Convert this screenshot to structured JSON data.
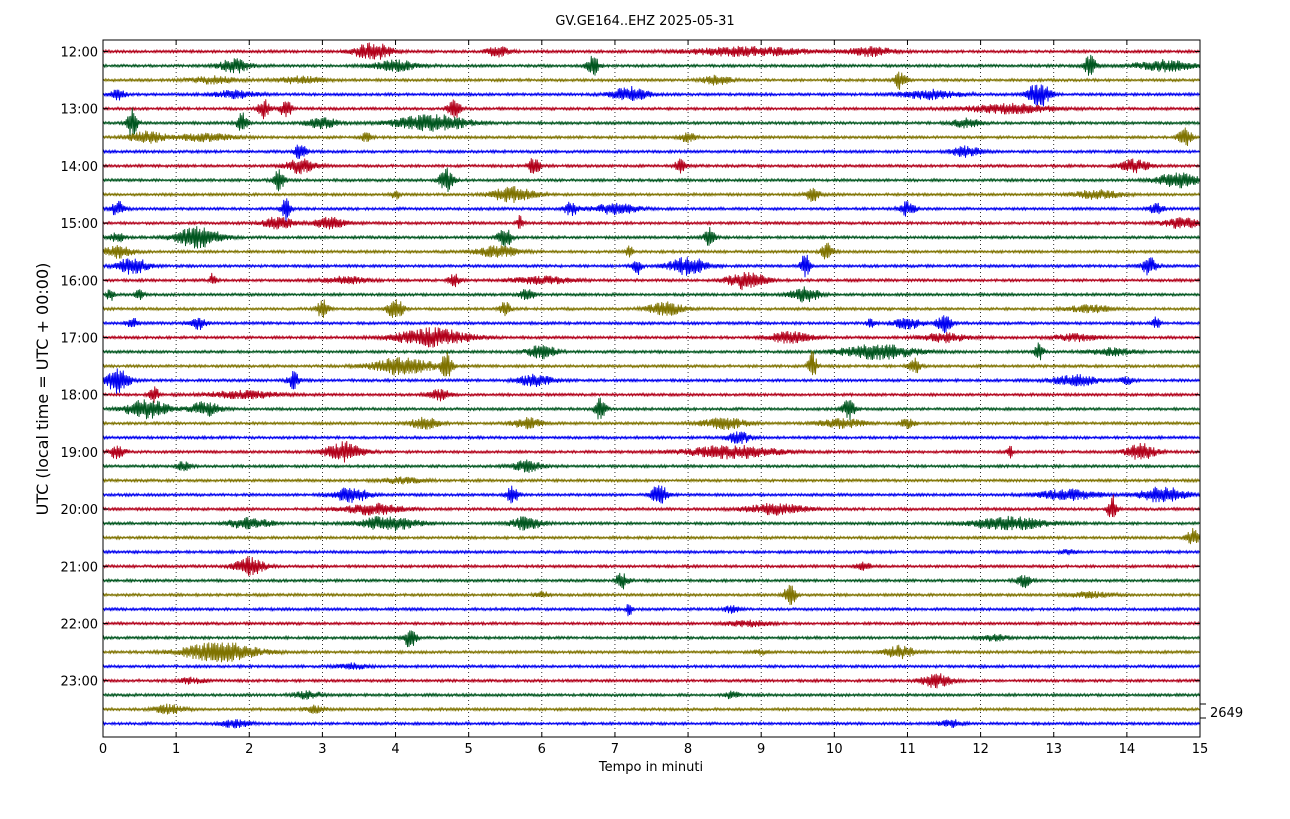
{
  "chart_data": {
    "type": "line",
    "title": "GV.GE164..EHZ 2025-05-31",
    "xlabel": "Tempo in minuti",
    "ylabel": "UTC (local time = UTC + 00:00)",
    "xlim": [
      0,
      15
    ],
    "x_ticks": [
      "0",
      "1",
      "2",
      "3",
      "4",
      "5",
      "6",
      "7",
      "8",
      "9",
      "10",
      "11",
      "12",
      "13",
      "14",
      "15"
    ],
    "y_tick_labels": [
      "12:00",
      "13:00",
      "14:00",
      "15:00",
      "16:00",
      "17:00",
      "18:00",
      "19:00",
      "20:00",
      "21:00",
      "22:00",
      "23:00"
    ],
    "grid": "vertical dotted",
    "trace_count": 48,
    "trace_interval_minutes": 15,
    "trace_colors": [
      "#b2001a",
      "#00561f",
      "#7f7300",
      "#0000f0"
    ],
    "scale_label": "2649",
    "events": [
      {
        "row": 0,
        "t": 3.7,
        "a": 1.0,
        "d": 0.25
      },
      {
        "row": 0,
        "t": 5.4,
        "a": 0.6,
        "d": 0.15
      },
      {
        "row": 0,
        "t": 8.8,
        "a": 0.5,
        "d": 0.8
      },
      {
        "row": 0,
        "t": 10.5,
        "a": 0.5,
        "d": 0.3
      },
      {
        "row": 1,
        "t": 1.8,
        "a": 0.8,
        "d": 0.2
      },
      {
        "row": 1,
        "t": 4.0,
        "a": 0.6,
        "d": 0.3
      },
      {
        "row": 1,
        "t": 6.7,
        "a": 1.1,
        "d": 0.08
      },
      {
        "row": 1,
        "t": 13.5,
        "a": 1.2,
        "d": 0.08
      },
      {
        "row": 1,
        "t": 14.5,
        "a": 0.6,
        "d": 0.4
      },
      {
        "row": 2,
        "t": 1.5,
        "a": 0.4,
        "d": 0.3
      },
      {
        "row": 2,
        "t": 2.7,
        "a": 0.4,
        "d": 0.3
      },
      {
        "row": 2,
        "t": 8.4,
        "a": 0.5,
        "d": 0.2
      },
      {
        "row": 2,
        "t": 10.9,
        "a": 1.0,
        "d": 0.08
      },
      {
        "row": 3,
        "t": 0.2,
        "a": 0.6,
        "d": 0.1
      },
      {
        "row": 3,
        "t": 1.8,
        "a": 0.4,
        "d": 0.3
      },
      {
        "row": 3,
        "t": 7.2,
        "a": 0.8,
        "d": 0.25
      },
      {
        "row": 3,
        "t": 11.3,
        "a": 0.5,
        "d": 0.4
      },
      {
        "row": 3,
        "t": 12.8,
        "a": 1.4,
        "d": 0.15
      },
      {
        "row": 4,
        "t": 2.2,
        "a": 1.1,
        "d": 0.08
      },
      {
        "row": 4,
        "t": 2.5,
        "a": 1.0,
        "d": 0.08
      },
      {
        "row": 4,
        "t": 4.8,
        "a": 1.2,
        "d": 0.08
      },
      {
        "row": 4,
        "t": 12.4,
        "a": 0.5,
        "d": 0.6
      },
      {
        "row": 5,
        "t": 0.4,
        "a": 1.6,
        "d": 0.07
      },
      {
        "row": 5,
        "t": 1.9,
        "a": 1.1,
        "d": 0.07
      },
      {
        "row": 5,
        "t": 3.0,
        "a": 0.6,
        "d": 0.2
      },
      {
        "row": 5,
        "t": 4.5,
        "a": 0.9,
        "d": 0.5
      },
      {
        "row": 5,
        "t": 11.8,
        "a": 0.5,
        "d": 0.2
      },
      {
        "row": 6,
        "t": 0.6,
        "a": 0.6,
        "d": 0.25
      },
      {
        "row": 6,
        "t": 1.4,
        "a": 0.4,
        "d": 0.4
      },
      {
        "row": 6,
        "t": 3.6,
        "a": 0.5,
        "d": 0.08
      },
      {
        "row": 6,
        "t": 8.0,
        "a": 0.6,
        "d": 0.1
      },
      {
        "row": 6,
        "t": 14.8,
        "a": 1.0,
        "d": 0.1
      },
      {
        "row": 7,
        "t": 2.7,
        "a": 0.9,
        "d": 0.08
      },
      {
        "row": 7,
        "t": 11.8,
        "a": 0.6,
        "d": 0.2
      },
      {
        "row": 8,
        "t": 2.7,
        "a": 0.8,
        "d": 0.2
      },
      {
        "row": 8,
        "t": 5.9,
        "a": 1.0,
        "d": 0.08
      },
      {
        "row": 8,
        "t": 7.9,
        "a": 0.8,
        "d": 0.08
      },
      {
        "row": 8,
        "t": 14.1,
        "a": 0.7,
        "d": 0.2
      },
      {
        "row": 9,
        "t": 2.4,
        "a": 1.2,
        "d": 0.08
      },
      {
        "row": 9,
        "t": 4.7,
        "a": 1.3,
        "d": 0.1
      },
      {
        "row": 9,
        "t": 14.7,
        "a": 0.8,
        "d": 0.3
      },
      {
        "row": 10,
        "t": 5.6,
        "a": 0.8,
        "d": 0.3
      },
      {
        "row": 10,
        "t": 9.7,
        "a": 0.7,
        "d": 0.1
      },
      {
        "row": 10,
        "t": 13.6,
        "a": 0.5,
        "d": 0.3
      },
      {
        "row": 10,
        "t": 4.0,
        "a": 0.6,
        "d": 0.05
      },
      {
        "row": 11,
        "t": 0.2,
        "a": 0.8,
        "d": 0.1
      },
      {
        "row": 11,
        "t": 2.5,
        "a": 1.4,
        "d": 0.06
      },
      {
        "row": 11,
        "t": 6.4,
        "a": 0.7,
        "d": 0.1
      },
      {
        "row": 11,
        "t": 7.0,
        "a": 0.6,
        "d": 0.3
      },
      {
        "row": 11,
        "t": 11.0,
        "a": 0.8,
        "d": 0.1
      },
      {
        "row": 11,
        "t": 14.4,
        "a": 0.6,
        "d": 0.1
      },
      {
        "row": 12,
        "t": 2.4,
        "a": 0.7,
        "d": 0.2
      },
      {
        "row": 12,
        "t": 3.1,
        "a": 0.7,
        "d": 0.2
      },
      {
        "row": 12,
        "t": 5.7,
        "a": 0.8,
        "d": 0.04
      },
      {
        "row": 12,
        "t": 14.8,
        "a": 0.6,
        "d": 0.3
      },
      {
        "row": 13,
        "t": 1.3,
        "a": 1.2,
        "d": 0.3
      },
      {
        "row": 13,
        "t": 0.2,
        "a": 0.5,
        "d": 0.1
      },
      {
        "row": 13,
        "t": 5.5,
        "a": 1.0,
        "d": 0.1
      },
      {
        "row": 13,
        "t": 8.3,
        "a": 1.2,
        "d": 0.07
      },
      {
        "row": 14,
        "t": 0.2,
        "a": 0.7,
        "d": 0.2
      },
      {
        "row": 14,
        "t": 5.4,
        "a": 0.6,
        "d": 0.3
      },
      {
        "row": 14,
        "t": 7.2,
        "a": 0.6,
        "d": 0.05
      },
      {
        "row": 14,
        "t": 9.9,
        "a": 1.0,
        "d": 0.08
      },
      {
        "row": 15,
        "t": 0.4,
        "a": 1.0,
        "d": 0.2
      },
      {
        "row": 15,
        "t": 7.3,
        "a": 1.0,
        "d": 0.06
      },
      {
        "row": 15,
        "t": 8.0,
        "a": 1.0,
        "d": 0.25
      },
      {
        "row": 15,
        "t": 9.6,
        "a": 1.4,
        "d": 0.06
      },
      {
        "row": 15,
        "t": 14.3,
        "a": 1.0,
        "d": 0.1
      },
      {
        "row": 16,
        "t": 1.5,
        "a": 0.8,
        "d": 0.04
      },
      {
        "row": 16,
        "t": 3.3,
        "a": 0.4,
        "d": 0.3
      },
      {
        "row": 16,
        "t": 4.8,
        "a": 0.7,
        "d": 0.08
      },
      {
        "row": 16,
        "t": 6.0,
        "a": 0.4,
        "d": 0.4
      },
      {
        "row": 16,
        "t": 8.8,
        "a": 1.0,
        "d": 0.25
      },
      {
        "row": 17,
        "t": 0.1,
        "a": 0.7,
        "d": 0.05
      },
      {
        "row": 17,
        "t": 0.5,
        "a": 0.8,
        "d": 0.05
      },
      {
        "row": 17,
        "t": 5.8,
        "a": 0.6,
        "d": 0.1
      },
      {
        "row": 17,
        "t": 9.6,
        "a": 0.8,
        "d": 0.2
      },
      {
        "row": 18,
        "t": 3.0,
        "a": 1.0,
        "d": 0.08
      },
      {
        "row": 18,
        "t": 4.0,
        "a": 1.3,
        "d": 0.1
      },
      {
        "row": 18,
        "t": 5.5,
        "a": 0.8,
        "d": 0.07
      },
      {
        "row": 18,
        "t": 7.7,
        "a": 0.7,
        "d": 0.25
      },
      {
        "row": 18,
        "t": 13.5,
        "a": 0.4,
        "d": 0.3
      },
      {
        "row": 19,
        "t": 0.4,
        "a": 0.6,
        "d": 0.08
      },
      {
        "row": 19,
        "t": 1.3,
        "a": 0.8,
        "d": 0.1
      },
      {
        "row": 19,
        "t": 10.5,
        "a": 0.6,
        "d": 0.05
      },
      {
        "row": 19,
        "t": 11.0,
        "a": 0.6,
        "d": 0.2
      },
      {
        "row": 19,
        "t": 11.5,
        "a": 1.0,
        "d": 0.1
      },
      {
        "row": 19,
        "t": 14.4,
        "a": 0.7,
        "d": 0.05
      },
      {
        "row": 20,
        "t": 4.5,
        "a": 1.0,
        "d": 0.5
      },
      {
        "row": 20,
        "t": 9.4,
        "a": 0.6,
        "d": 0.3
      },
      {
        "row": 20,
        "t": 11.5,
        "a": 0.5,
        "d": 0.3
      },
      {
        "row": 20,
        "t": 13.3,
        "a": 0.4,
        "d": 0.3
      },
      {
        "row": 21,
        "t": 6.0,
        "a": 0.7,
        "d": 0.2
      },
      {
        "row": 21,
        "t": 10.6,
        "a": 0.8,
        "d": 0.5
      },
      {
        "row": 21,
        "t": 12.8,
        "a": 1.0,
        "d": 0.06
      },
      {
        "row": 21,
        "t": 13.8,
        "a": 0.4,
        "d": 0.3
      },
      {
        "row": 22,
        "t": 4.1,
        "a": 1.0,
        "d": 0.4
      },
      {
        "row": 22,
        "t": 4.7,
        "a": 1.4,
        "d": 0.08
      },
      {
        "row": 22,
        "t": 9.7,
        "a": 1.6,
        "d": 0.06
      },
      {
        "row": 22,
        "t": 11.1,
        "a": 0.8,
        "d": 0.08
      },
      {
        "row": 23,
        "t": 0.2,
        "a": 1.4,
        "d": 0.15
      },
      {
        "row": 23,
        "t": 2.6,
        "a": 1.0,
        "d": 0.08
      },
      {
        "row": 23,
        "t": 5.9,
        "a": 0.6,
        "d": 0.25
      },
      {
        "row": 23,
        "t": 13.3,
        "a": 0.6,
        "d": 0.3
      },
      {
        "row": 23,
        "t": 14.0,
        "a": 0.4,
        "d": 0.1
      },
      {
        "row": 24,
        "t": 0.7,
        "a": 0.8,
        "d": 0.07
      },
      {
        "row": 24,
        "t": 1.9,
        "a": 0.4,
        "d": 0.5
      },
      {
        "row": 24,
        "t": 4.6,
        "a": 0.6,
        "d": 0.15
      },
      {
        "row": 25,
        "t": 0.6,
        "a": 1.0,
        "d": 0.3
      },
      {
        "row": 25,
        "t": 1.4,
        "a": 0.8,
        "d": 0.2
      },
      {
        "row": 25,
        "t": 6.8,
        "a": 1.2,
        "d": 0.08
      },
      {
        "row": 25,
        "t": 10.2,
        "a": 1.2,
        "d": 0.08
      },
      {
        "row": 26,
        "t": 4.4,
        "a": 0.6,
        "d": 0.2
      },
      {
        "row": 26,
        "t": 5.8,
        "a": 0.6,
        "d": 0.2
      },
      {
        "row": 26,
        "t": 8.5,
        "a": 0.6,
        "d": 0.3
      },
      {
        "row": 26,
        "t": 10.1,
        "a": 0.5,
        "d": 0.3
      },
      {
        "row": 26,
        "t": 11.0,
        "a": 0.5,
        "d": 0.1
      },
      {
        "row": 27,
        "t": 8.7,
        "a": 0.7,
        "d": 0.15
      },
      {
        "row": 28,
        "t": 0.2,
        "a": 0.8,
        "d": 0.1
      },
      {
        "row": 28,
        "t": 3.3,
        "a": 1.1,
        "d": 0.25
      },
      {
        "row": 28,
        "t": 8.6,
        "a": 0.7,
        "d": 0.6
      },
      {
        "row": 28,
        "t": 14.2,
        "a": 0.9,
        "d": 0.2
      },
      {
        "row": 28,
        "t": 12.4,
        "a": 0.6,
        "d": 0.05
      },
      {
        "row": 29,
        "t": 1.1,
        "a": 0.5,
        "d": 0.1
      },
      {
        "row": 29,
        "t": 5.8,
        "a": 0.6,
        "d": 0.2
      },
      {
        "row": 30,
        "t": 4.1,
        "a": 0.3,
        "d": 0.3
      },
      {
        "row": 31,
        "t": 3.4,
        "a": 0.8,
        "d": 0.25
      },
      {
        "row": 31,
        "t": 5.6,
        "a": 1.0,
        "d": 0.08
      },
      {
        "row": 31,
        "t": 7.6,
        "a": 1.4,
        "d": 0.1
      },
      {
        "row": 31,
        "t": 13.2,
        "a": 0.6,
        "d": 0.4
      },
      {
        "row": 31,
        "t": 14.5,
        "a": 0.9,
        "d": 0.3
      },
      {
        "row": 32,
        "t": 3.7,
        "a": 0.6,
        "d": 0.4
      },
      {
        "row": 32,
        "t": 9.2,
        "a": 0.6,
        "d": 0.4
      },
      {
        "row": 32,
        "t": 13.8,
        "a": 1.6,
        "d": 0.06
      },
      {
        "row": 33,
        "t": 2.0,
        "a": 0.6,
        "d": 0.3
      },
      {
        "row": 33,
        "t": 3.9,
        "a": 0.8,
        "d": 0.4
      },
      {
        "row": 33,
        "t": 5.8,
        "a": 0.8,
        "d": 0.2
      },
      {
        "row": 33,
        "t": 12.4,
        "a": 0.7,
        "d": 0.5
      },
      {
        "row": 34,
        "t": 14.9,
        "a": 1.0,
        "d": 0.08
      },
      {
        "row": 35,
        "t": 13.2,
        "a": 0.3,
        "d": 0.1
      },
      {
        "row": 36,
        "t": 2.0,
        "a": 1.0,
        "d": 0.2
      },
      {
        "row": 36,
        "t": 10.4,
        "a": 0.4,
        "d": 0.1
      },
      {
        "row": 37,
        "t": 7.1,
        "a": 1.0,
        "d": 0.08
      },
      {
        "row": 37,
        "t": 12.6,
        "a": 0.7,
        "d": 0.1
      },
      {
        "row": 38,
        "t": 6.0,
        "a": 0.4,
        "d": 0.1
      },
      {
        "row": 38,
        "t": 9.4,
        "a": 1.3,
        "d": 0.08
      },
      {
        "row": 38,
        "t": 13.5,
        "a": 0.3,
        "d": 0.3
      },
      {
        "row": 39,
        "t": 7.2,
        "a": 0.9,
        "d": 0.04
      },
      {
        "row": 39,
        "t": 8.6,
        "a": 0.4,
        "d": 0.1
      },
      {
        "row": 40,
        "t": 8.8,
        "a": 0.3,
        "d": 0.3
      },
      {
        "row": 41,
        "t": 4.2,
        "a": 1.1,
        "d": 0.08
      },
      {
        "row": 41,
        "t": 12.2,
        "a": 0.3,
        "d": 0.2
      },
      {
        "row": 42,
        "t": 1.6,
        "a": 1.1,
        "d": 0.5
      },
      {
        "row": 42,
        "t": 10.9,
        "a": 0.7,
        "d": 0.2
      },
      {
        "row": 42,
        "t": 9.0,
        "a": 0.3,
        "d": 0.1
      },
      {
        "row": 43,
        "t": 3.4,
        "a": 0.3,
        "d": 0.2
      },
      {
        "row": 44,
        "t": 11.4,
        "a": 0.8,
        "d": 0.2
      },
      {
        "row": 44,
        "t": 1.2,
        "a": 0.3,
        "d": 0.2
      },
      {
        "row": 45,
        "t": 2.8,
        "a": 0.4,
        "d": 0.2
      },
      {
        "row": 45,
        "t": 8.6,
        "a": 0.4,
        "d": 0.1
      },
      {
        "row": 46,
        "t": 0.9,
        "a": 0.5,
        "d": 0.2
      },
      {
        "row": 46,
        "t": 2.9,
        "a": 0.4,
        "d": 0.15
      },
      {
        "row": 47,
        "t": 1.8,
        "a": 0.4,
        "d": 0.2
      },
      {
        "row": 47,
        "t": 11.6,
        "a": 0.4,
        "d": 0.15
      }
    ]
  }
}
